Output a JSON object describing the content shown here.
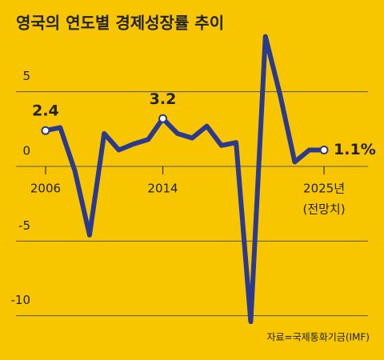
{
  "chart_data": {
    "type": "line",
    "title": "영국의 연도별 경제성장률 추이",
    "source": "자료=국제통화기금(IMF)",
    "x": [
      2006,
      2007,
      2008,
      2009,
      2010,
      2011,
      2012,
      2013,
      2014,
      2015,
      2016,
      2017,
      2018,
      2019,
      2020,
      2021,
      2022,
      2023,
      2024,
      2025
    ],
    "values": [
      2.4,
      2.6,
      -0.3,
      -4.6,
      2.2,
      1.1,
      1.5,
      1.8,
      3.2,
      2.2,
      1.9,
      2.7,
      1.4,
      1.6,
      -10.4,
      8.7,
      4.8,
      0.3,
      1.1,
      1.1
    ],
    "value_labels": [
      "2.4",
      null,
      null,
      null,
      null,
      null,
      null,
      null,
      "3.2",
      null,
      null,
      null,
      null,
      null,
      null,
      null,
      null,
      null,
      null,
      "1.1%"
    ],
    "color": "#2b3a8f",
    "xlim": [
      2003,
      2028
    ],
    "xticks": [
      2006,
      2014,
      {
        "value": 2025,
        "label": "2025년"
      }
    ],
    "forecast_note": "(전망치)",
    "ylim": [
      -10.5,
      9
    ],
    "yticks": [
      5,
      0,
      -5,
      -10
    ],
    "grid": true
  }
}
